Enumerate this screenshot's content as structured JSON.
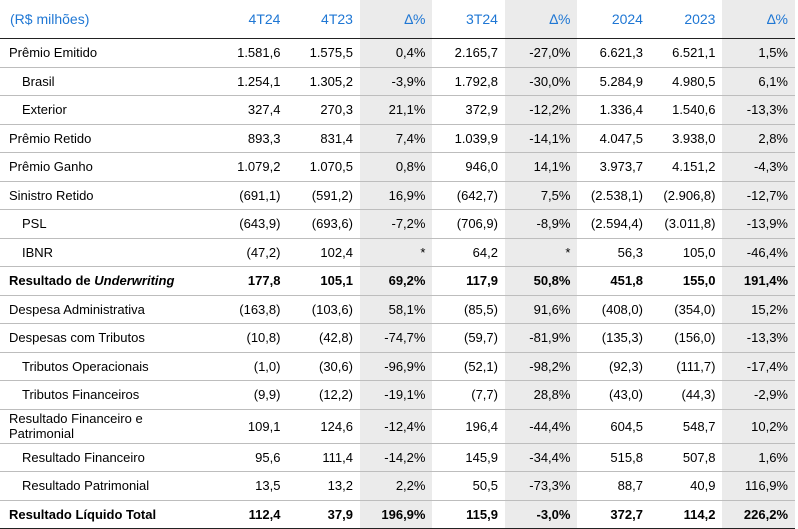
{
  "header": {
    "label": "(R$ milhões)",
    "columns": [
      "4T24",
      "4T23",
      "∆%",
      "3T24",
      "∆%",
      "2024",
      "2023",
      "∆%"
    ]
  },
  "rows": [
    {
      "label": "Prêmio Emitido",
      "values": [
        "1.581,6",
        "1.575,5",
        "0,4%",
        "2.165,7",
        "-27,0%",
        "6.621,3",
        "6.521,1",
        "1,5%"
      ]
    },
    {
      "label": "Brasil",
      "values": [
        "1.254,1",
        "1.305,2",
        "-3,9%",
        "1.792,8",
        "-30,0%",
        "5.284,9",
        "4.980,5",
        "6,1%"
      ]
    },
    {
      "label": "Exterior",
      "values": [
        "327,4",
        "270,3",
        "21,1%",
        "372,9",
        "-12,2%",
        "1.336,4",
        "1.540,6",
        "-13,3%"
      ]
    },
    {
      "label": "Prêmio Retido",
      "values": [
        "893,3",
        "831,4",
        "7,4%",
        "1.039,9",
        "-14,1%",
        "4.047,5",
        "3.938,0",
        "2,8%"
      ]
    },
    {
      "label": "Prêmio Ganho",
      "values": [
        "1.079,2",
        "1.070,5",
        "0,8%",
        "946,0",
        "14,1%",
        "3.973,7",
        "4.151,2",
        "-4,3%"
      ]
    },
    {
      "label": "Sinistro Retido",
      "values": [
        "(691,1)",
        "(591,2)",
        "16,9%",
        "(642,7)",
        "7,5%",
        "(2.538,1)",
        "(2.906,8)",
        "-12,7%"
      ]
    },
    {
      "label": "PSL",
      "values": [
        "(643,9)",
        "(693,6)",
        "-7,2%",
        "(706,9)",
        "-8,9%",
        "(2.594,4)",
        "(3.011,8)",
        "-13,9%"
      ]
    },
    {
      "label": "IBNR",
      "values": [
        "(47,2)",
        "102,4",
        "*",
        "64,2",
        "*",
        "56,3",
        "105,0",
        "-46,4%"
      ]
    },
    {
      "label_prefix": "Resultado de ",
      "label_emph": "Underwriting",
      "values": [
        "177,8",
        "105,1",
        "69,2%",
        "117,9",
        "50,8%",
        "451,8",
        "155,0",
        "191,4%"
      ]
    },
    {
      "label": "Despesa Administrativa",
      "values": [
        "(163,8)",
        "(103,6)",
        "58,1%",
        "(85,5)",
        "91,6%",
        "(408,0)",
        "(354,0)",
        "15,2%"
      ]
    },
    {
      "label": "Despesas com Tributos",
      "values": [
        "(10,8)",
        "(42,8)",
        "-74,7%",
        "(59,7)",
        "-81,9%",
        "(135,3)",
        "(156,0)",
        "-13,3%"
      ]
    },
    {
      "label": "Tributos Operacionais",
      "values": [
        "(1,0)",
        "(30,6)",
        "-96,9%",
        "(52,1)",
        "-98,2%",
        "(92,3)",
        "(111,7)",
        "-17,4%"
      ]
    },
    {
      "label": "Tributos Financeiros",
      "values": [
        "(9,9)",
        "(12,2)",
        "-19,1%",
        "(7,7)",
        "28,8%",
        "(43,0)",
        "(44,3)",
        "-2,9%"
      ]
    },
    {
      "label": "Resultado Financeiro e Patrimonial",
      "values": [
        "109,1",
        "124,6",
        "-12,4%",
        "196,4",
        "-44,4%",
        "604,5",
        "548,7",
        "10,2%"
      ]
    },
    {
      "label": "Resultado Financeiro",
      "values": [
        "95,6",
        "111,4",
        "-14,2%",
        "145,9",
        "-34,4%",
        "515,8",
        "507,8",
        "1,6%"
      ]
    },
    {
      "label": "Resultado Patrimonial",
      "values": [
        "13,5",
        "13,2",
        "2,2%",
        "50,5",
        "-73,3%",
        "88,7",
        "40,9",
        "116,9%"
      ]
    },
    {
      "label": "Resultado Líquido Total",
      "values": [
        "112,4",
        "37,9",
        "196,9%",
        "115,9",
        "-3,0%",
        "372,7",
        "114,2",
        "226,2%"
      ]
    }
  ]
}
